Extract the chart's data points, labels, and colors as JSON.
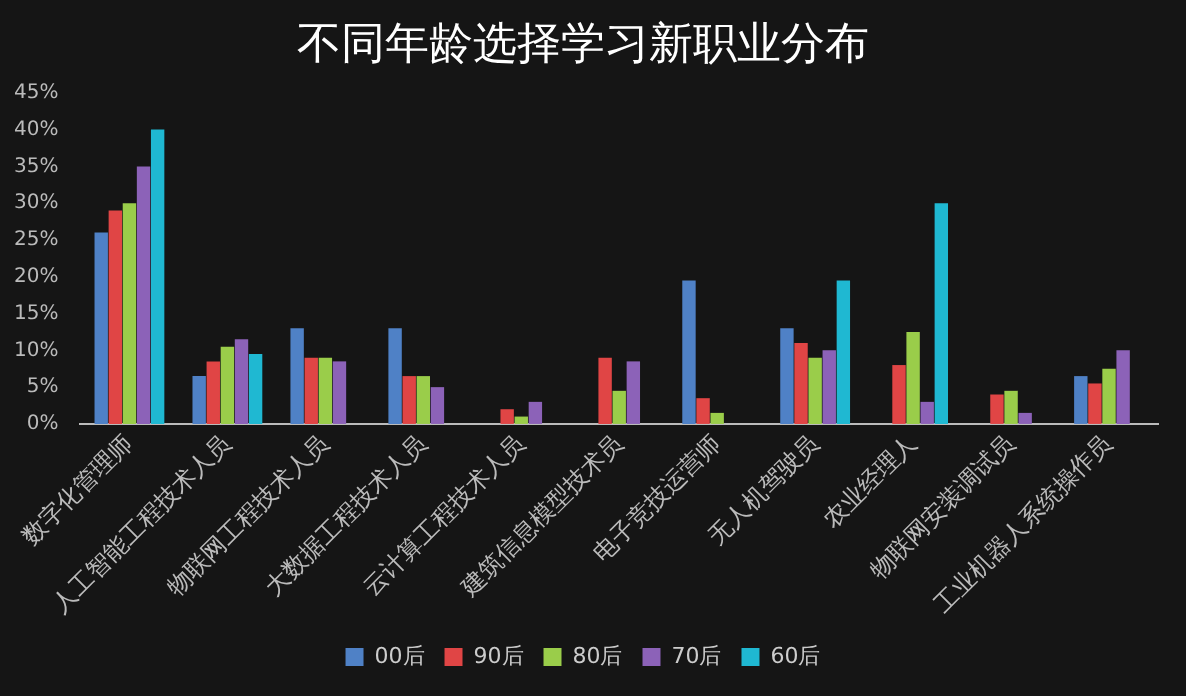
{
  "chart_data": {
    "type": "bar",
    "title": "不同年龄选择学习新职业分布",
    "categories": [
      "数字化管理师",
      "人工智能工程技术人员",
      "物联网工程技术人员",
      "大数据工程技术人员",
      "云计算工程技术人员",
      "建筑信息模型技术员",
      "电子竞技运营师",
      "无人机驾驶员",
      "农业经理人",
      "物联网安装调试员",
      "工业机器人系统操作员"
    ],
    "series": [
      {
        "name": "00后",
        "color": "#4f81c6",
        "values": [
          26,
          6.5,
          13,
          13,
          null,
          null,
          19.5,
          13,
          null,
          null,
          6.5
        ]
      },
      {
        "name": "90后",
        "color": "#e04545",
        "values": [
          29,
          8.5,
          9,
          6.5,
          2,
          9,
          3.5,
          11,
          8,
          4,
          5.5
        ]
      },
      {
        "name": "80后",
        "color": "#9acd4a",
        "values": [
          30,
          10.5,
          9,
          6.5,
          1,
          4.5,
          1.5,
          9,
          12.5,
          4.5,
          7.5
        ]
      },
      {
        "name": "70后",
        "color": "#8c62b8",
        "values": [
          35,
          11.5,
          8.5,
          5,
          3,
          8.5,
          null,
          10,
          3,
          1.5,
          10
        ]
      },
      {
        "name": "60后",
        "color": "#1fb8d2",
        "values": [
          40,
          9.5,
          null,
          null,
          null,
          null,
          null,
          19.5,
          30,
          null,
          null
        ]
      }
    ],
    "ylim": [
      0,
      45
    ],
    "yticks": [
      {
        "value": 0,
        "label": "0%"
      },
      {
        "value": 5,
        "label": "5%"
      },
      {
        "value": 10,
        "label": "10%"
      },
      {
        "value": 15,
        "label": "15%"
      },
      {
        "value": 20,
        "label": "20%"
      },
      {
        "value": 25,
        "label": "25%"
      },
      {
        "value": 30,
        "label": "30%"
      },
      {
        "value": 35,
        "label": "35%"
      },
      {
        "value": 40,
        "label": "40%"
      },
      {
        "value": 45,
        "label": "45%"
      }
    ],
    "grid": false,
    "legend": "bottom"
  }
}
